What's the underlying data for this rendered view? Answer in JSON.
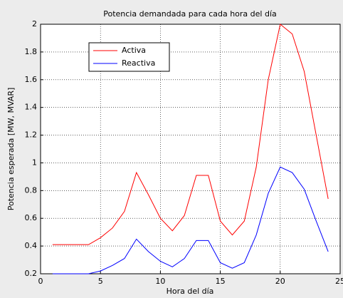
{
  "chart_data": {
    "type": "line",
    "title": "Potencia demandada para cada hora del día",
    "x_label": "Hora del día",
    "y_label": "Potencia esperada [MW, MVAR]",
    "x": [
      1,
      2,
      3,
      4,
      5,
      6,
      7,
      8,
      9,
      10,
      11,
      12,
      13,
      14,
      15,
      16,
      17,
      18,
      19,
      20,
      21,
      22,
      23,
      24
    ],
    "series": [
      {
        "name": "Activa",
        "color": "#ff0000",
        "values": [
          0.41,
          0.41,
          0.41,
          0.41,
          0.46,
          0.53,
          0.65,
          0.93,
          0.77,
          0.6,
          0.51,
          0.62,
          0.91,
          0.91,
          0.58,
          0.48,
          0.58,
          0.97,
          1.6,
          2.0,
          1.93,
          1.66,
          1.2,
          0.74
        ]
      },
      {
        "name": "Reactiva",
        "color": "#0000ff",
        "values": [
          0.2,
          0.2,
          0.2,
          0.2,
          0.22,
          0.26,
          0.31,
          0.45,
          0.36,
          0.29,
          0.25,
          0.31,
          0.44,
          0.44,
          0.28,
          0.24,
          0.28,
          0.48,
          0.78,
          0.97,
          0.93,
          0.81,
          0.58,
          0.36
        ]
      }
    ],
    "xlim": [
      0,
      25
    ],
    "xticks": [
      0,
      5,
      10,
      15,
      20,
      25
    ],
    "ylim": [
      0.2,
      2
    ],
    "yticks": [
      0.2,
      0.4,
      0.6,
      0.8,
      1,
      1.2,
      1.4,
      1.6,
      1.8,
      2
    ],
    "grid": true,
    "legend": "upper left"
  }
}
